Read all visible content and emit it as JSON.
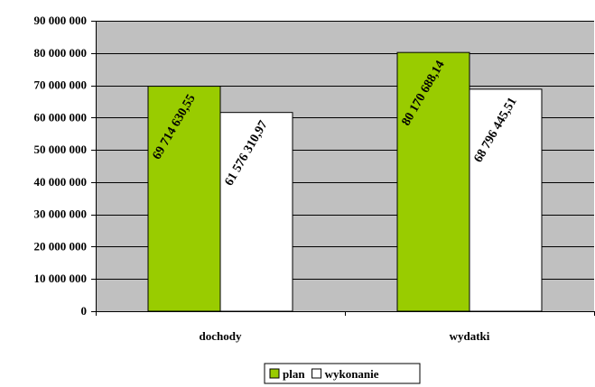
{
  "chart_data": {
    "type": "bar",
    "title": "",
    "xlabel": "",
    "ylabel": "",
    "categories": [
      "dochody",
      "wydatki"
    ],
    "series": [
      {
        "name": "plan",
        "values": [
          69714630.55,
          80170688.14
        ],
        "labels": [
          "69 714 630,55",
          "80 170 688,14"
        ],
        "color": "#99cc00"
      },
      {
        "name": "wykonanie",
        "values": [
          61576310.97,
          68796445.51
        ],
        "labels": [
          "61 576 310,97",
          "68 796 445,51"
        ],
        "color": "#ffffff"
      }
    ],
    "ylim": [
      0,
      90000000
    ],
    "yticks": [
      0,
      10000000,
      20000000,
      30000000,
      40000000,
      50000000,
      60000000,
      70000000,
      80000000,
      90000000
    ],
    "ytick_labels": [
      "0",
      "10 000 000",
      "20 000 000",
      "30 000 000",
      "40 000 000",
      "50 000 000",
      "60 000 000",
      "70 000 000",
      "80 000 000",
      "90 000 000"
    ],
    "grid": true,
    "plot_background": "#c0c0c0",
    "legend_position": "bottom"
  }
}
